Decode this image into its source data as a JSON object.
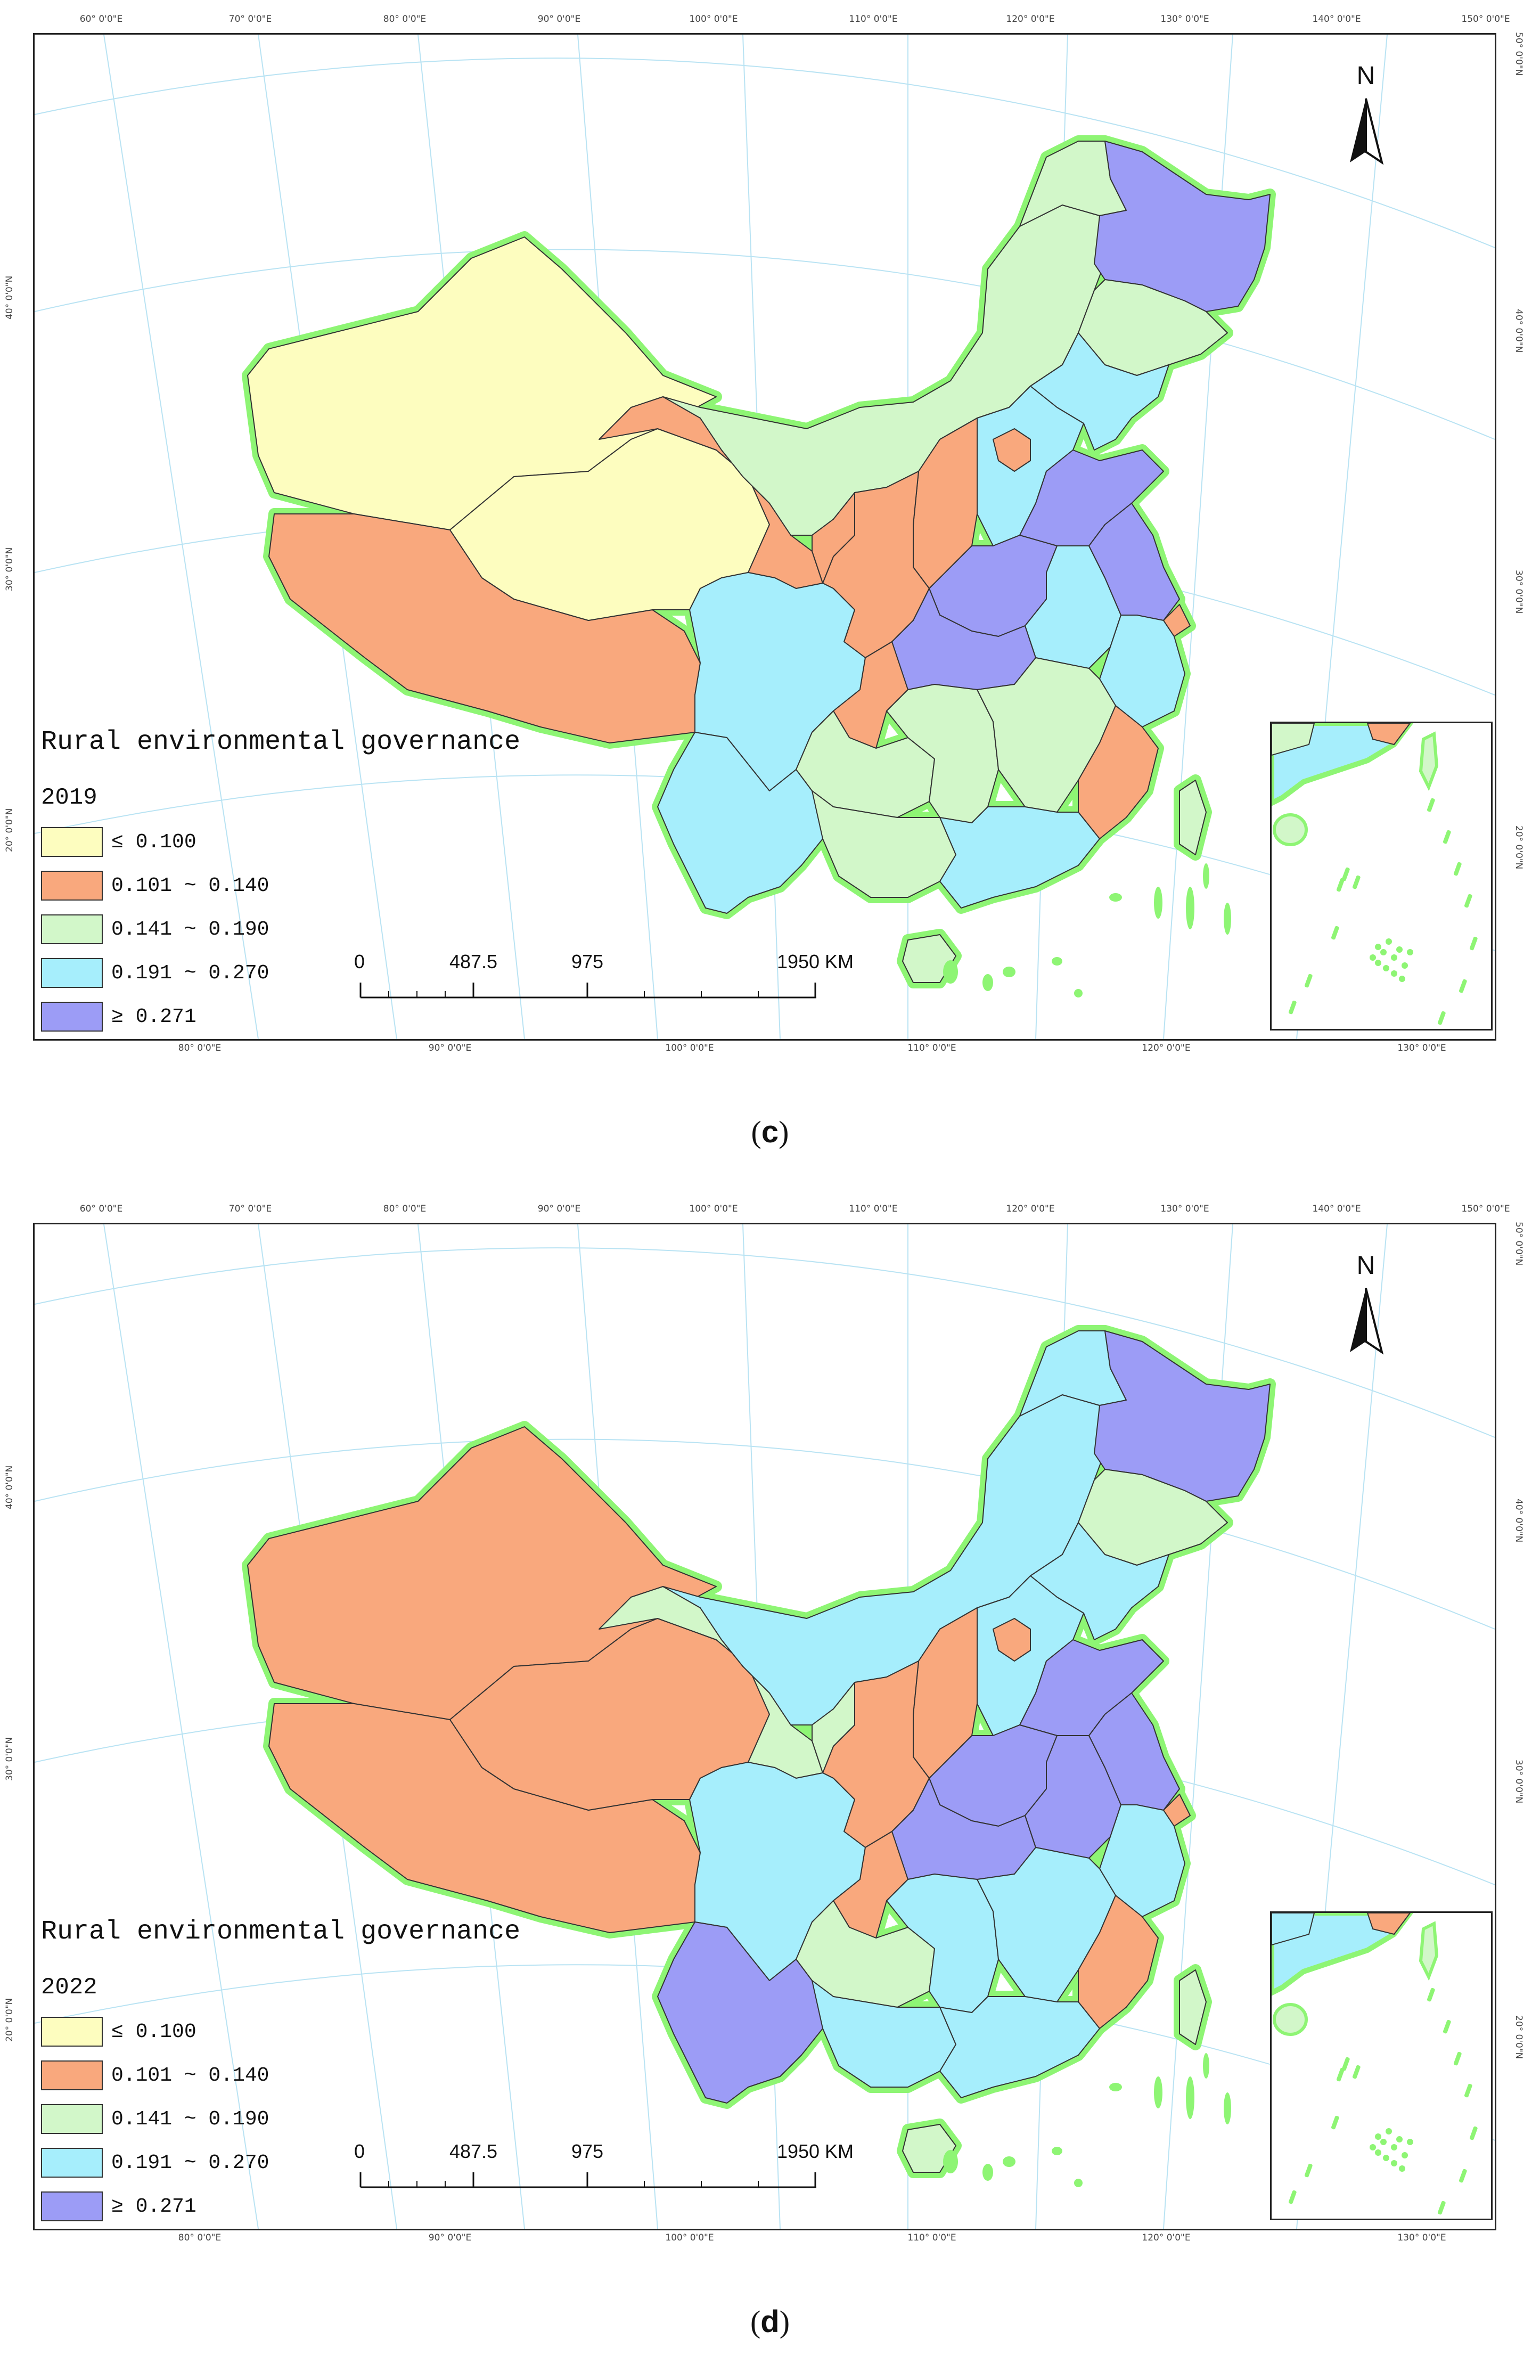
{
  "figure": {
    "colors": {
      "lt_0_100": "#fdfdbf",
      "c_101_140": "#f9a87d",
      "c_141_190": "#d2f7c9",
      "c_191_270": "#a6eefc",
      "ge_271": "#9c9cf6",
      "border_glow": "#8ef574",
      "graticule": "#b9e3f3"
    },
    "coords": {
      "top": [
        "60° 0'0\"E",
        "70° 0'0\"E",
        "80° 0'0\"E",
        "90° 0'0\"E",
        "100° 0'0\"E",
        "110° 0'0\"E",
        "120° 0'0\"E",
        "130° 0'0\"E",
        "140° 0'0\"E",
        "150° 0'0\"E"
      ],
      "bottom": [
        "80° 0'0\"E",
        "90° 0'0\"E",
        "100° 0'0\"E",
        "110° 0'0\"E",
        "120° 0'0\"E",
        "130° 0'0\"E"
      ],
      "left": [
        "40° 0'0\"N",
        "30° 0'0\"N",
        "20° 0'0\"N"
      ],
      "right": [
        "50° 0'0\"N",
        "40° 0'0\"N",
        "30° 0'0\"N",
        "20° 0'0\"N"
      ]
    },
    "north_label": "N",
    "scale": {
      "t0": "0",
      "t1": "487.5",
      "t2": "975",
      "t3": "1950 KM"
    },
    "legend_title": "Rural environmental governance",
    "legend_items": [
      {
        "key": "lt_0_100",
        "label": "≤ 0.100"
      },
      {
        "key": "c_101_140",
        "label": "0.101 ~ 0.140"
      },
      {
        "key": "c_141_190",
        "label": "0.141 ~ 0.190"
      },
      {
        "key": "c_191_270",
        "label": "0.191 ~ 0.270"
      },
      {
        "key": "ge_271",
        "label": "≥ 0.271"
      }
    ]
  },
  "panels": [
    {
      "label": "c",
      "year": "2019",
      "regions": {
        "xinjiang": "lt_0_100",
        "xizang": "c_101_140",
        "qinghai": "lt_0_100",
        "gansu": "c_101_140",
        "neimenggu": "c_141_190",
        "heilongjiang_west": "c_141_190",
        "heilongjiang_east": "ge_271",
        "jilin": "c_141_190",
        "liaoning": "c_191_270",
        "hebei": "c_191_270",
        "beijing_tianjin": "c_101_140",
        "shanxi": "c_101_140",
        "shaanxi": "c_101_140",
        "ningxia": "c_101_140",
        "shandong": "ge_271",
        "henan": "ge_271",
        "hubei": "ge_271",
        "anhui": "c_191_270",
        "jiangsu": "ge_271",
        "shanghai": "c_101_140",
        "zhejiang": "c_191_270",
        "sichuan": "c_191_270",
        "chongqing": "c_101_140",
        "guizhou": "c_141_190",
        "hunan": "c_141_190",
        "jiangxi": "c_141_190",
        "fujian": "c_101_140",
        "yunnan": "c_191_270",
        "guangxi": "c_141_190",
        "guangdong": "c_191_270",
        "hainan": "c_141_190",
        "taiwan": "c_141_190"
      }
    },
    {
      "label": "d",
      "year": "2022",
      "regions": {
        "xinjiang": "c_101_140",
        "xizang": "c_101_140",
        "qinghai": "c_101_140",
        "gansu": "c_141_190",
        "neimenggu": "c_191_270",
        "heilongjiang_west": "c_191_270",
        "heilongjiang_east": "ge_271",
        "jilin": "c_141_190",
        "liaoning": "c_191_270",
        "hebei": "c_191_270",
        "beijing_tianjin": "c_101_140",
        "shanxi": "c_101_140",
        "shaanxi": "c_101_140",
        "ningxia": "c_141_190",
        "shandong": "ge_271",
        "henan": "ge_271",
        "hubei": "ge_271",
        "anhui": "ge_271",
        "jiangsu": "ge_271",
        "shanghai": "c_101_140",
        "zhejiang": "c_191_270",
        "sichuan": "c_191_270",
        "chongqing": "c_101_140",
        "guizhou": "c_141_190",
        "hunan": "c_191_270",
        "jiangxi": "c_191_270",
        "fujian": "c_101_140",
        "yunnan": "ge_271",
        "guangxi": "c_191_270",
        "guangdong": "c_191_270",
        "hainan": "c_141_190",
        "taiwan": "c_141_190"
      }
    }
  ]
}
